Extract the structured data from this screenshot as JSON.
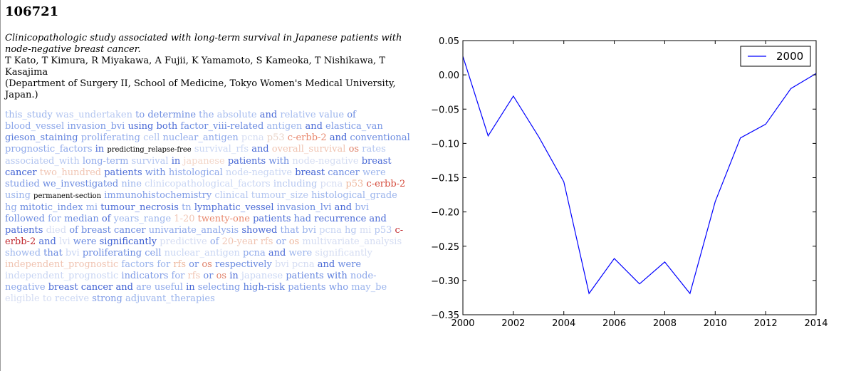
{
  "doc_id": "106721",
  "title": "Clinicopathologic study associated with long-term survival in Japanese patients with node-negative breast cancer.",
  "authors": "T Kato, T Kimura, R Miyakawa, A Fujii, K Yamamoto, S Kameoka, T Nishikawa, T Kasajima",
  "affiliation": "(Department of Surgery II, School of Medicine, Tokyo Women's Medical University, Japan.)",
  "abstract_tokens": [
    {
      "t": "this_study",
      "c": "#9bb4ec"
    },
    {
      "t": "was_undertaken",
      "c": "#b4c6f0"
    },
    {
      "t": "to",
      "c": "#7d9ae6"
    },
    {
      "t": "determine",
      "c": "#6a8ae0"
    },
    {
      "t": "the",
      "c": "#8ea8ea"
    },
    {
      "t": "absolute",
      "c": "#a6bcef"
    },
    {
      "t": "and",
      "c": "#4a6ad6"
    },
    {
      "t": "relative",
      "c": "#a6bcef"
    },
    {
      "t": "value",
      "c": "#9bb4ec"
    },
    {
      "t": "of",
      "c": "#6a8ae0"
    },
    {
      "t": "blood_vessel",
      "c": "#8ea8ea"
    },
    {
      "t": "invasion_bvi",
      "c": "#7d9ae6"
    },
    {
      "t": "using",
      "c": "#4a6ad6"
    },
    {
      "t": "both",
      "c": "#4a6ad6"
    },
    {
      "t": "factor_viii-related",
      "c": "#6a8ae0"
    },
    {
      "t": "antigen",
      "c": "#9bb4ec"
    },
    {
      "t": "and",
      "c": "#4a6ad6"
    },
    {
      "t": "elastica_van",
      "c": "#7d9ae6"
    },
    {
      "t": "gieson_staining",
      "c": "#5a7cdc"
    },
    {
      "t": "proliferating",
      "c": "#8ea8ea"
    },
    {
      "t": "cell",
      "c": "#b4c6f0"
    },
    {
      "t": "nuclear_antigen",
      "c": "#8ea8ea"
    },
    {
      "t": "pcna",
      "c": "#d4dcf2"
    },
    {
      "t": "p53",
      "c": "#e9d2c6"
    },
    {
      "t": "c-erbb-2",
      "c": "#e8876c"
    },
    {
      "t": "and",
      "c": "#3c5ed2"
    },
    {
      "t": "conventional",
      "c": "#6a8ae0"
    },
    {
      "t": "prognostic_factors",
      "c": "#8ea8ea"
    },
    {
      "t": "in",
      "c": "#4a6ad6"
    },
    {
      "t": "predicting_relapse-free",
      "c": "#000000",
      "small": true
    },
    {
      "t": "survival_rfs",
      "c": "#c8d5f3"
    },
    {
      "t": "and",
      "c": "#4a6ad6"
    },
    {
      "t": "overall_survival",
      "c": "#f0c4b2"
    },
    {
      "t": "os",
      "c": "#e0826a"
    },
    {
      "t": "rates",
      "c": "#b4c6f0"
    },
    {
      "t": "associated_with",
      "c": "#b4c6f0"
    },
    {
      "t": "long-term",
      "c": "#8ea8ea"
    },
    {
      "t": "survival",
      "c": "#b4c6f0"
    },
    {
      "t": "in",
      "c": "#4a6ad6"
    },
    {
      "t": "japanese",
      "c": "#f3d6c8"
    },
    {
      "t": "patients",
      "c": "#4a6ad6"
    },
    {
      "t": "with",
      "c": "#6a8ae0"
    },
    {
      "t": "node-negative",
      "c": "#d4dcf2"
    },
    {
      "t": "breast",
      "c": "#4a6ad6"
    },
    {
      "t": "cancer",
      "c": "#3c5ed2"
    },
    {
      "t": "two_hundred",
      "c": "#f0c4b2"
    },
    {
      "t": "patients",
      "c": "#4a6ad6"
    },
    {
      "t": "with",
      "c": "#6a8ae0"
    },
    {
      "t": "histological",
      "c": "#8ea8ea"
    },
    {
      "t": "node-negative",
      "c": "#c8d5f3"
    },
    {
      "t": "breast",
      "c": "#3c5ed2"
    },
    {
      "t": "cancer",
      "c": "#6a8ae0"
    },
    {
      "t": "were",
      "c": "#9bb4ec"
    },
    {
      "t": "studied",
      "c": "#7d9ae6"
    },
    {
      "t": "we_investigated",
      "c": "#6a8ae0"
    },
    {
      "t": "nine",
      "c": "#9bb4ec"
    },
    {
      "t": "clinicopathological_factors",
      "c": "#c8d5f3"
    },
    {
      "t": "including",
      "c": "#b4c6f0"
    },
    {
      "t": "pcna",
      "c": "#d4dcf2"
    },
    {
      "t": "p53",
      "c": "#eeb89e"
    },
    {
      "t": "c-erbb-2",
      "c": "#d4493a"
    },
    {
      "t": "using",
      "c": "#9bb4ec"
    },
    {
      "t": "permanent-section",
      "c": "#000000",
      "small": true
    },
    {
      "t": "immunohistochemistry",
      "c": "#7d9ae6"
    },
    {
      "t": "clinical",
      "c": "#b4c6f0"
    },
    {
      "t": "tumour_size",
      "c": "#b4c6f0"
    },
    {
      "t": "histological_grade",
      "c": "#9bb4ec"
    },
    {
      "t": "hg",
      "c": "#8ea8ea"
    },
    {
      "t": "mitotic_index",
      "c": "#6a8ae0"
    },
    {
      "t": "mi",
      "c": "#8ea8ea"
    },
    {
      "t": "tumour_necrosis",
      "c": "#4a6ad6"
    },
    {
      "t": "tn",
      "c": "#8ea8ea"
    },
    {
      "t": "lymphatic_vessel",
      "c": "#4a6ad6"
    },
    {
      "t": "invasion_lvi",
      "c": "#6a8ae0"
    },
    {
      "t": "and",
      "c": "#4a6ad6"
    },
    {
      "t": "bvi",
      "c": "#8ea8ea"
    },
    {
      "t": "followed",
      "c": "#6a8ae0"
    },
    {
      "t": "for",
      "c": "#8ea8ea"
    },
    {
      "t": "median",
      "c": "#6a8ae0"
    },
    {
      "t": "of",
      "c": "#4a6ad6"
    },
    {
      "t": "years_range",
      "c": "#9bb4ec"
    },
    {
      "t": "1-20",
      "c": "#f0c4b2"
    },
    {
      "t": "twenty-one",
      "c": "#e8876c"
    },
    {
      "t": "patients",
      "c": "#4a6ad6"
    },
    {
      "t": "had",
      "c": "#5a7cdc"
    },
    {
      "t": "recurrence",
      "c": "#4a6ad6"
    },
    {
      "t": "and",
      "c": "#4a6ad6"
    },
    {
      "t": "patients",
      "c": "#4a6ad6"
    },
    {
      "t": "died",
      "c": "#d4dcf2"
    },
    {
      "t": "of",
      "c": "#6a8ae0"
    },
    {
      "t": "breast",
      "c": "#6a8ae0"
    },
    {
      "t": "cancer",
      "c": "#6a8ae0"
    },
    {
      "t": "univariate_analysis",
      "c": "#8ea8ea"
    },
    {
      "t": "showed",
      "c": "#4a6ad6"
    },
    {
      "t": "that",
      "c": "#8ea8ea"
    },
    {
      "t": "bvi",
      "c": "#9bb4ec"
    },
    {
      "t": "pcna",
      "c": "#c8d5f3"
    },
    {
      "t": "hg",
      "c": "#b4c6f0"
    },
    {
      "t": "mi",
      "c": "#d4dcf2"
    },
    {
      "t": "p53",
      "c": "#b4c6f0"
    },
    {
      "t": "c-erbb-2",
      "c": "#c0272d"
    },
    {
      "t": "and",
      "c": "#4a6ad6"
    },
    {
      "t": "lvi",
      "c": "#d4dcf2"
    },
    {
      "t": "were",
      "c": "#6a8ae0"
    },
    {
      "t": "significantly",
      "c": "#3c5ed2"
    },
    {
      "t": "predictive",
      "c": "#d4dcf2"
    },
    {
      "t": "of",
      "c": "#8ea8ea"
    },
    {
      "t": "20-year",
      "c": "#f0c4b2"
    },
    {
      "t": "rfs",
      "c": "#f0c4b2"
    },
    {
      "t": "or",
      "c": "#8ea8ea"
    },
    {
      "t": "os",
      "c": "#eeb89e"
    },
    {
      "t": "multivariate_analysis",
      "c": "#d4dcf2"
    },
    {
      "t": "showed",
      "c": "#9bb4ec"
    },
    {
      "t": "that",
      "c": "#6a8ae0"
    },
    {
      "t": "bvi",
      "c": "#c8d5f3"
    },
    {
      "t": "proliferating",
      "c": "#6a8ae0"
    },
    {
      "t": "cell",
      "c": "#7d9ae6"
    },
    {
      "t": "nuclear_antigen",
      "c": "#c8d5f3"
    },
    {
      "t": "pcna",
      "c": "#8ea8ea"
    },
    {
      "t": "and",
      "c": "#4a6ad6"
    },
    {
      "t": "were",
      "c": "#9bb4ec"
    },
    {
      "t": "significantly",
      "c": "#d4dcf2"
    },
    {
      "t": "independent_prognostic",
      "c": "#f0c4b2"
    },
    {
      "t": "factors",
      "c": "#9bb4ec"
    },
    {
      "t": "for",
      "c": "#9bb4ec"
    },
    {
      "t": "rfs",
      "c": "#eeb89e"
    },
    {
      "t": "or",
      "c": "#6a8ae0"
    },
    {
      "t": "os",
      "c": "#e0826a"
    },
    {
      "t": "respectively",
      "c": "#6a8ae0"
    },
    {
      "t": "bvi",
      "c": "#d4dcf2"
    },
    {
      "t": "pcna",
      "c": "#d4dcf2"
    },
    {
      "t": "and",
      "c": "#4a6ad6"
    },
    {
      "t": "were",
      "c": "#6a8ae0"
    },
    {
      "t": "independent_prognostic",
      "c": "#c8d5f3"
    },
    {
      "t": "indicators",
      "c": "#7d9ae6"
    },
    {
      "t": "for",
      "c": "#8ea8ea"
    },
    {
      "t": "rfs",
      "c": "#f0c4b2"
    },
    {
      "t": "or",
      "c": "#6a8ae0"
    },
    {
      "t": "os",
      "c": "#e0826a"
    },
    {
      "t": "in",
      "c": "#4a6ad6"
    },
    {
      "t": "japanese",
      "c": "#c8d5f3"
    },
    {
      "t": "patients",
      "c": "#6a8ae0"
    },
    {
      "t": "with",
      "c": "#5a7cdc"
    },
    {
      "t": "node-negative",
      "c": "#8ea8ea"
    },
    {
      "t": "breast",
      "c": "#4a6ad6"
    },
    {
      "t": "cancer",
      "c": "#3c5ed2"
    },
    {
      "t": "and",
      "c": "#3c5ed2"
    },
    {
      "t": "are",
      "c": "#8ea8ea"
    },
    {
      "t": "useful",
      "c": "#8ea8ea"
    },
    {
      "t": "in",
      "c": "#4a6ad6"
    },
    {
      "t": "selecting",
      "c": "#7d9ae6"
    },
    {
      "t": "high-risk",
      "c": "#5a7cdc"
    },
    {
      "t": "patients",
      "c": "#7d9ae6"
    },
    {
      "t": "who",
      "c": "#7d9ae6"
    },
    {
      "t": "may_be",
      "c": "#9bb4ec"
    },
    {
      "t": "eligible",
      "c": "#d4dcf2"
    },
    {
      "t": "to",
      "c": "#d4dcf2"
    },
    {
      "t": "receive",
      "c": "#c8d5f3"
    },
    {
      "t": "strong",
      "c": "#7d9ae6"
    },
    {
      "t": "adjuvant_therapies",
      "c": "#9bb4ec"
    }
  ],
  "chart_data": {
    "type": "line",
    "series": [
      {
        "name": "2000",
        "color": "#0000ff",
        "x": [
          2000,
          2001,
          2002,
          2003,
          2004,
          2005,
          2006,
          2007,
          2008,
          2009,
          2010,
          2011,
          2012,
          2013,
          2014
        ],
        "values": [
          0.027,
          -0.089,
          -0.031,
          -0.09,
          -0.156,
          -0.319,
          -0.268,
          -0.305,
          -0.273,
          -0.319,
          -0.185,
          -0.092,
          -0.072,
          -0.02,
          0.002
        ]
      }
    ],
    "xlim": [
      2000,
      2014
    ],
    "ylim": [
      -0.35,
      0.05
    ],
    "xticks": [
      2000,
      2002,
      2004,
      2006,
      2008,
      2010,
      2012,
      2014
    ],
    "yticks": [
      0.05,
      0.0,
      -0.05,
      -0.1,
      -0.15,
      -0.2,
      -0.25,
      -0.3,
      -0.35
    ],
    "ytick_labels": [
      "0.05",
      "0.00",
      "−0.05",
      "−0.10",
      "−0.15",
      "−0.20",
      "−0.25",
      "−0.30",
      "−0.35"
    ],
    "grid": false,
    "legend_position": "top-right"
  }
}
